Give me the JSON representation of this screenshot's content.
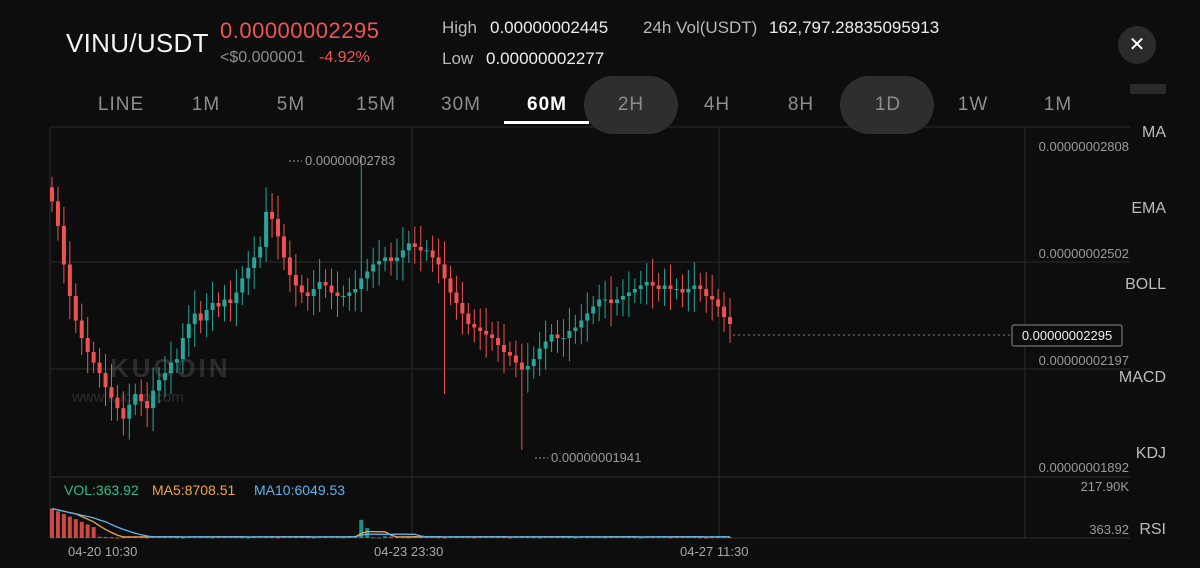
{
  "header": {
    "pair": "VINU/USDT",
    "last_price": "0.00000002295",
    "usd_value": "<$0.000001",
    "change": "-4.92%",
    "high_label": "High",
    "high_value": "0.00000002445",
    "low_label": "Low",
    "low_value": "0.00000002277",
    "vol_label": "24h Vol(USDT)",
    "vol_value": "162,797.28835095913",
    "close_icon": "close-icon"
  },
  "intervals": [
    "LINE",
    "1M",
    "5M",
    "15M",
    "30M",
    "60M",
    "2H",
    "4H",
    "8H",
    "1D",
    "1W",
    "1M"
  ],
  "active_interval": "60M",
  "indicators": [
    "MA",
    "EMA",
    "BOLL",
    "MACD",
    "KDJ",
    "RSI"
  ],
  "price_axis": {
    "ticks": [
      "0.00000002808",
      "0.00000002502",
      "0.00000002197",
      "0.00000001892"
    ],
    "current": "0.00000002295"
  },
  "annotations": {
    "max": "0.00000002783",
    "min": "0.00000001941"
  },
  "watermark": {
    "brand": "KUCOIN",
    "url": "www.kucoin.com"
  },
  "volume": {
    "vol_label": "VOL:363.92",
    "ma5_label": "MA5:8708.51",
    "ma10_label": "MA10:6049.53",
    "axis_max": "217.90K",
    "axis_current": "363.92"
  },
  "time_axis": [
    "04-20 10:30",
    "04-23 23:30",
    "04-27 11:30"
  ],
  "colors": {
    "up": "#26a69a",
    "down": "#ef5350",
    "price_red": "#f05454",
    "vol_green": "#2bbf8a",
    "ma5": "#f0a54a",
    "ma10": "#5fb3ea"
  },
  "chart_data": {
    "type": "candlestick",
    "interval": "60M",
    "close": [
      2.65e-08,
      2.58e-08,
      2.47e-08,
      2.38e-08,
      2.31e-08,
      2.26e-08,
      2.22e-08,
      2.19e-08,
      2.16e-08,
      2.12e-08,
      2.09e-08,
      2.06e-08,
      2.03e-08,
      2.07e-08,
      2.1e-08,
      2.08e-08,
      2.06e-08,
      2.11e-08,
      2.14e-08,
      2.16e-08,
      2.19e-08,
      2.2e-08,
      2.26e-08,
      2.3e-08,
      2.33e-08,
      2.31e-08,
      2.34e-08,
      2.36e-08,
      2.35e-08,
      2.37e-08,
      2.36e-08,
      2.39e-08,
      2.43e-08,
      2.46e-08,
      2.49e-08,
      2.52e-08,
      2.62e-08,
      2.6e-08,
      2.55e-08,
      2.49e-08,
      2.44e-08,
      2.41e-08,
      2.39e-08,
      2.38e-08,
      2.4e-08,
      2.42e-08,
      2.41e-08,
      2.39e-08,
      2.38e-08,
      2.38e-08,
      2.39e-08,
      2.4e-08,
      2.43e-08,
      2.45e-08,
      2.47e-08,
      2.48e-08,
      2.49e-08,
      2.48e-08,
      2.49e-08,
      2.51e-08,
      2.53e-08,
      2.52e-08,
      2.51e-08,
      2.51e-08,
      2.49e-08,
      2.47e-08,
      2.43e-08,
      2.39e-08,
      2.36e-08,
      2.33e-08,
      2.3e-08,
      2.29e-08,
      2.28e-08,
      2.27e-08,
      2.26e-08,
      2.24e-08,
      2.22e-08,
      2.21e-08,
      2.19e-08,
      2.17e-08,
      2.18e-08,
      2.2e-08,
      2.23e-08,
      2.25e-08,
      2.27e-08,
      2.26e-08,
      2.26e-08,
      2.28e-08,
      2.29e-08,
      2.31e-08,
      2.33e-08,
      2.35e-08,
      2.37e-08,
      2.37e-08,
      2.36e-08,
      2.37e-08,
      2.38e-08,
      2.39e-08,
      2.4e-08,
      2.41e-08,
      2.42e-08,
      2.41e-08,
      2.4e-08,
      2.41e-08,
      2.4e-08,
      2.4e-08,
      2.39e-08,
      2.4e-08,
      2.41e-08,
      2.4e-08,
      2.38e-08,
      2.37e-08,
      2.35e-08,
      2.32e-08,
      2.3e-08
    ],
    "high": 2.783e-08,
    "low": 1.941e-08,
    "last": 2.295e-08,
    "y_ticks": [
      2.808e-08,
      2.502e-08,
      2.197e-08,
      1.892e-08
    ],
    "x_ticks": [
      "04-20 10:30",
      "04-23 23:30",
      "04-27 11:30"
    ],
    "volume_max": 217900,
    "volume_last": 363.92
  }
}
